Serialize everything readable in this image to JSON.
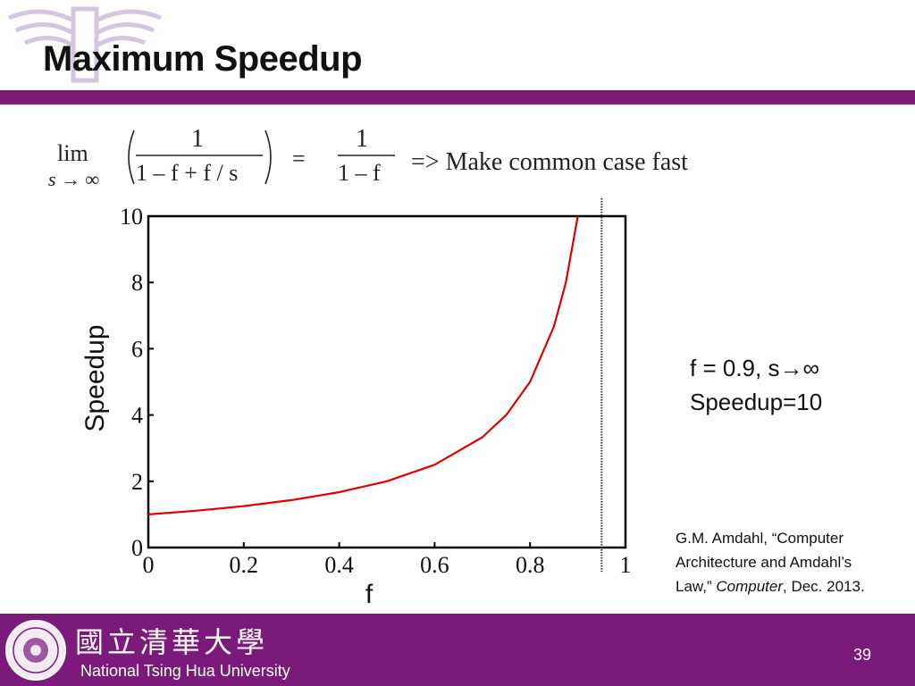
{
  "slide": {
    "title": "Maximum Speedup",
    "page_number": "39",
    "university_chinese": "國立清華大學",
    "university_english": "National Tsing Hua University"
  },
  "formula": {
    "lim": "lim",
    "lim_sub": "s → ∞",
    "numerator": "1",
    "denominator": "1 – f + f / s",
    "equals": "=",
    "rhs_numerator": "1",
    "rhs_denominator": "1 – f",
    "conclusion": "=> Make common case fast"
  },
  "note": {
    "line1": "f = 0.9, s→∞",
    "line2": "Speedup=10"
  },
  "citation": {
    "line1": "G.M. Amdahl, “Computer",
    "line2": "Architecture and Amdahl’s",
    "line3_pre": "Law,” ",
    "line3_italic": "Computer",
    "line3_post": ", Dec. 2013."
  },
  "colors": {
    "brand_purple": "#7b1a7b",
    "curve": "#e00000"
  },
  "chart_data": {
    "type": "line",
    "title": "",
    "xlabel": "f",
    "ylabel": "Speedup",
    "xlim": [
      0,
      1
    ],
    "ylim": [
      0,
      10
    ],
    "x_ticks": [
      "0",
      "0.2",
      "0.4",
      "0.6",
      "0.8",
      "1"
    ],
    "y_ticks": [
      "0",
      "2",
      "4",
      "6",
      "8",
      "10"
    ],
    "grid": false,
    "series": [
      {
        "x": [
          0,
          0.1,
          0.2,
          0.3,
          0.4,
          0.5,
          0.6,
          0.7,
          0.75,
          0.8,
          0.85,
          0.875,
          0.9
        ],
        "y": [
          1.0,
          1.11,
          1.25,
          1.43,
          1.67,
          2.0,
          2.5,
          3.33,
          4.0,
          5.0,
          6.67,
          8.0,
          10.0
        ]
      }
    ],
    "vertical_reference": {
      "x": 0.95,
      "style": "dotted"
    }
  }
}
